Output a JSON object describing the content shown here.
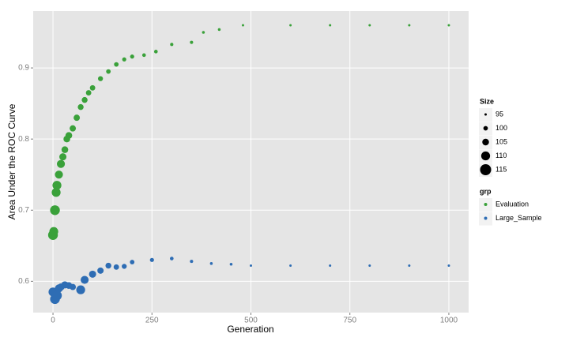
{
  "chart_data": {
    "type": "scatter",
    "x_label": "Generation",
    "y_label": "Area Under the ROC Curve",
    "xlim": [
      -50,
      1050
    ],
    "ylim": [
      0.556,
      0.98
    ],
    "xticks": [
      0,
      250,
      500,
      750,
      1000
    ],
    "yticks": [
      0.6,
      0.7,
      0.8,
      0.9
    ],
    "grid": true,
    "size_title": "Size",
    "size_legend": [
      95,
      100,
      105,
      110,
      115
    ],
    "color_title": "grp",
    "series": [
      {
        "name": "Evaluation",
        "color": "#3aa13a",
        "x": [
          0,
          2,
          5,
          8,
          10,
          15,
          20,
          25,
          30,
          35,
          40,
          50,
          60,
          70,
          80,
          90,
          100,
          120,
          140,
          160,
          180,
          200,
          230,
          260,
          300,
          350,
          380,
          420,
          480,
          600,
          700,
          800,
          900,
          1000
        ],
        "values": [
          0.665,
          0.67,
          0.7,
          0.725,
          0.735,
          0.75,
          0.765,
          0.775,
          0.785,
          0.8,
          0.805,
          0.815,
          0.83,
          0.845,
          0.855,
          0.865,
          0.872,
          0.885,
          0.895,
          0.905,
          0.912,
          0.916,
          0.918,
          0.923,
          0.933,
          0.936,
          0.95,
          0.954,
          0.96,
          0.96,
          0.96,
          0.96,
          0.96,
          0.96
        ],
        "sizes": [
          112,
          110,
          112,
          110,
          110,
          108,
          108,
          106,
          105,
          105,
          105,
          104,
          104,
          103,
          103,
          102,
          102,
          101,
          100,
          100,
          99,
          99,
          98,
          98,
          97,
          97,
          96,
          96,
          95,
          95,
          95,
          95,
          95,
          95
        ]
      },
      {
        "name": "Large_Sample",
        "color": "#2e6db4",
        "x": [
          0,
          5,
          10,
          15,
          20,
          30,
          40,
          50,
          70,
          80,
          100,
          120,
          140,
          160,
          180,
          200,
          250,
          300,
          350,
          400,
          450,
          500,
          600,
          700,
          800,
          900,
          1000
        ],
        "values": [
          0.585,
          0.575,
          0.58,
          0.59,
          0.592,
          0.595,
          0.594,
          0.592,
          0.588,
          0.602,
          0.61,
          0.615,
          0.622,
          0.62,
          0.621,
          0.627,
          0.63,
          0.632,
          0.628,
          0.625,
          0.624,
          0.622,
          0.622,
          0.622,
          0.622,
          0.622,
          0.622
        ],
        "sizes": [
          110,
          112,
          112,
          108,
          106,
          106,
          105,
          104,
          110,
          108,
          106,
          104,
          103,
          102,
          101,
          100,
          99,
          98,
          97,
          96,
          96,
          95,
          95,
          95,
          95,
          95,
          95
        ]
      }
    ]
  }
}
